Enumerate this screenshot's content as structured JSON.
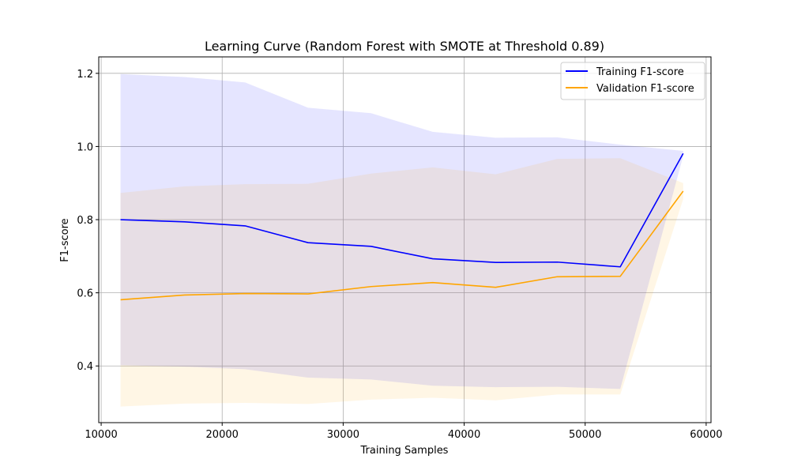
{
  "chart_data": {
    "type": "line",
    "title": "Learning Curve (Random Forest with SMOTE at Threshold 0.89)",
    "xlabel": "Training Samples",
    "ylabel": "F1-score",
    "xlim": [
      9800,
      60400
    ],
    "ylim": [
      0.245,
      1.245
    ],
    "xticks": [
      10000,
      20000,
      30000,
      40000,
      50000,
      60000
    ],
    "yticks": [
      0.4,
      0.6,
      0.8,
      1.0,
      1.2
    ],
    "xtick_labels": [
      "10000",
      "20000",
      "30000",
      "40000",
      "50000",
      "60000"
    ],
    "ytick_labels": [
      "0.4",
      "0.6",
      "0.8",
      "1.0",
      "1.2"
    ],
    "grid": true,
    "legend_position": "upper-right",
    "x": [
      11600,
      16900,
      21900,
      27100,
      32300,
      37400,
      42600,
      47700,
      52900,
      58100
    ],
    "series": [
      {
        "name": "Training F1-score",
        "color": "#0000ff",
        "band_color": "#0000ff",
        "values": [
          0.8,
          0.794,
          0.783,
          0.737,
          0.727,
          0.693,
          0.683,
          0.684,
          0.671,
          0.981
        ],
        "upper": [
          1.198,
          1.19,
          1.175,
          1.106,
          1.091,
          1.04,
          1.024,
          1.025,
          1.005,
          0.988
        ],
        "lower": [
          0.402,
          0.398,
          0.391,
          0.368,
          0.363,
          0.346,
          0.342,
          0.343,
          0.337,
          0.974
        ]
      },
      {
        "name": "Validation F1-score",
        "color": "#ffa500",
        "band_color": "#ffa500",
        "values": [
          0.581,
          0.594,
          0.598,
          0.597,
          0.617,
          0.628,
          0.615,
          0.644,
          0.645,
          0.878
        ],
        "upper": [
          0.873,
          0.891,
          0.897,
          0.898,
          0.926,
          0.943,
          0.924,
          0.966,
          0.968,
          0.9
        ],
        "lower": [
          0.289,
          0.297,
          0.299,
          0.296,
          0.308,
          0.313,
          0.306,
          0.322,
          0.322,
          0.856
        ]
      }
    ]
  }
}
